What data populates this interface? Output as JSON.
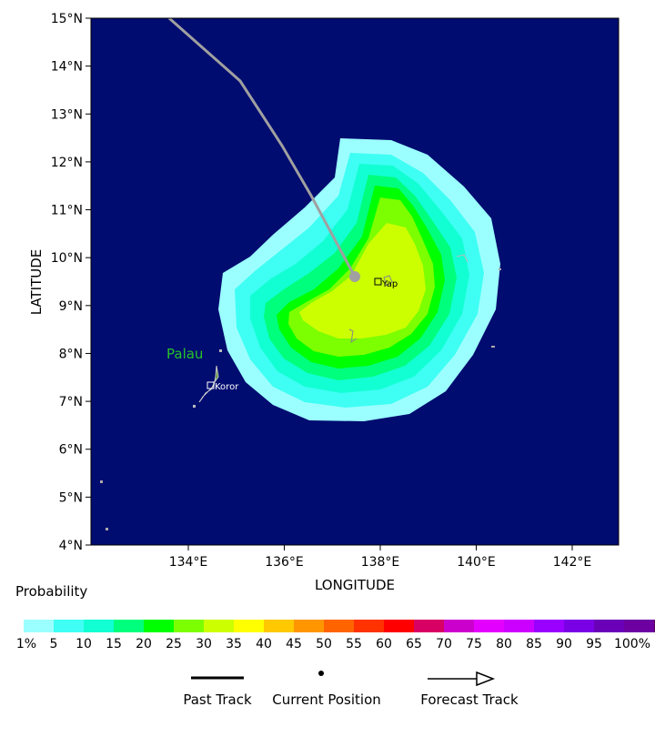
{
  "map": {
    "background_color": "#000c70",
    "lat_ticks": [
      "15°N",
      "14°N",
      "13°N",
      "12°N",
      "11°N",
      "10°N",
      "9°N",
      "8°N",
      "7°N",
      "6°N",
      "5°N",
      "4°N"
    ],
    "lon_ticks": [
      "134°E",
      "136°E",
      "138°E",
      "140°E",
      "142°E"
    ],
    "xlabel": "LONGITUDE",
    "ylabel": "LATITUDE",
    "places": {
      "palau_label": "Palau",
      "koror_label": "Koror",
      "yap_label": "Yap"
    }
  },
  "legend": {
    "title": "Probability",
    "colors": [
      "#9cffff",
      "#3ffff4",
      "#12ffd3",
      "#00ff7c",
      "#00ff00",
      "#7cff00",
      "#ccff00",
      "#ffff00",
      "#ffc800",
      "#ff9600",
      "#ff6400",
      "#ff3200",
      "#ff0000",
      "#d80064",
      "#cc00cc",
      "#e400ff",
      "#cc00ff",
      "#9900ff",
      "#7a00e6",
      "#6a00b8",
      "#6c00a0",
      "#5a0060"
    ],
    "labels": [
      "1%",
      "5",
      "10",
      "15",
      "20",
      "25",
      "30",
      "35",
      "40",
      "45",
      "50",
      "55",
      "60",
      "65",
      "70",
      "75",
      "80",
      "85",
      "90",
      "95",
      "100%"
    ]
  },
  "key": {
    "past_track": "Past Track",
    "current_position": "Current Position",
    "forecast_track": "Forecast Track"
  }
}
